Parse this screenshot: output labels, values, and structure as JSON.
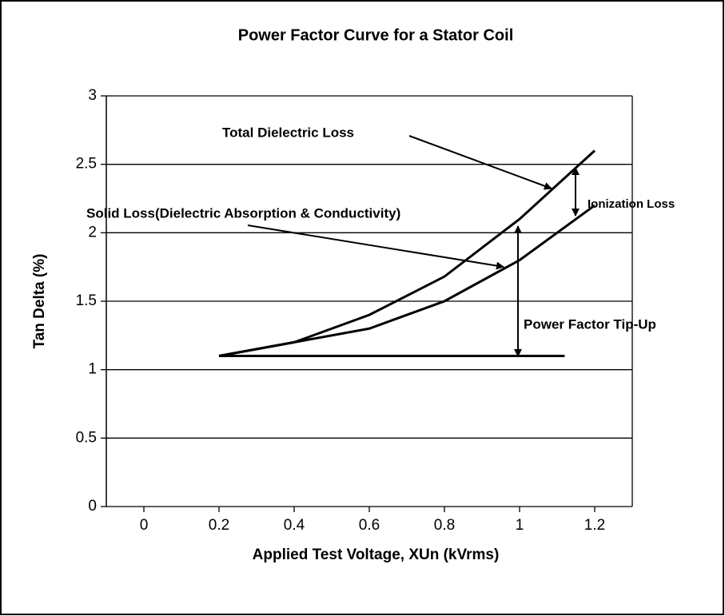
{
  "chart_data": {
    "type": "line",
    "title": "Power Factor Curve for a Stator Coil",
    "x_label": "Applied Test Voltage, XUn (kVrms)",
    "y_label": "Tan Delta (%)",
    "xlim": [
      -0.1,
      1.3
    ],
    "xticks": [
      0,
      0.2,
      0.4,
      0.6,
      0.8,
      1,
      1.2
    ],
    "ylim": [
      0,
      3
    ],
    "yticks": [
      0,
      0.5,
      1,
      1.5,
      2,
      2.5,
      3
    ],
    "grid": true,
    "series": [
      {
        "name": "Total Dielectric Loss",
        "color": "#000000",
        "x": [
          0.2,
          0.4,
          0.6,
          0.8,
          1.0,
          1.2
        ],
        "values": [
          1.1,
          1.2,
          1.4,
          1.68,
          2.1,
          2.6
        ]
      },
      {
        "name": "Solid Loss(Dielectric Absorption & Conductivity)",
        "color": "#000000",
        "x": [
          0.2,
          0.4,
          0.6,
          0.8,
          1.0,
          1.2
        ],
        "values": [
          1.1,
          1.2,
          1.3,
          1.5,
          1.8,
          2.2
        ]
      },
      {
        "name": "Power Factor Tip-Up",
        "color": "#000000",
        "x": [
          0.2,
          1.12
        ],
        "values": [
          1.1,
          1.1
        ]
      }
    ],
    "annotations": [
      "Total Dielectric Loss",
      "Ionization Loss",
      "Solid Loss(Dielectric Absorption & Conductivity)",
      "Power Factor Tip-Up"
    ]
  }
}
